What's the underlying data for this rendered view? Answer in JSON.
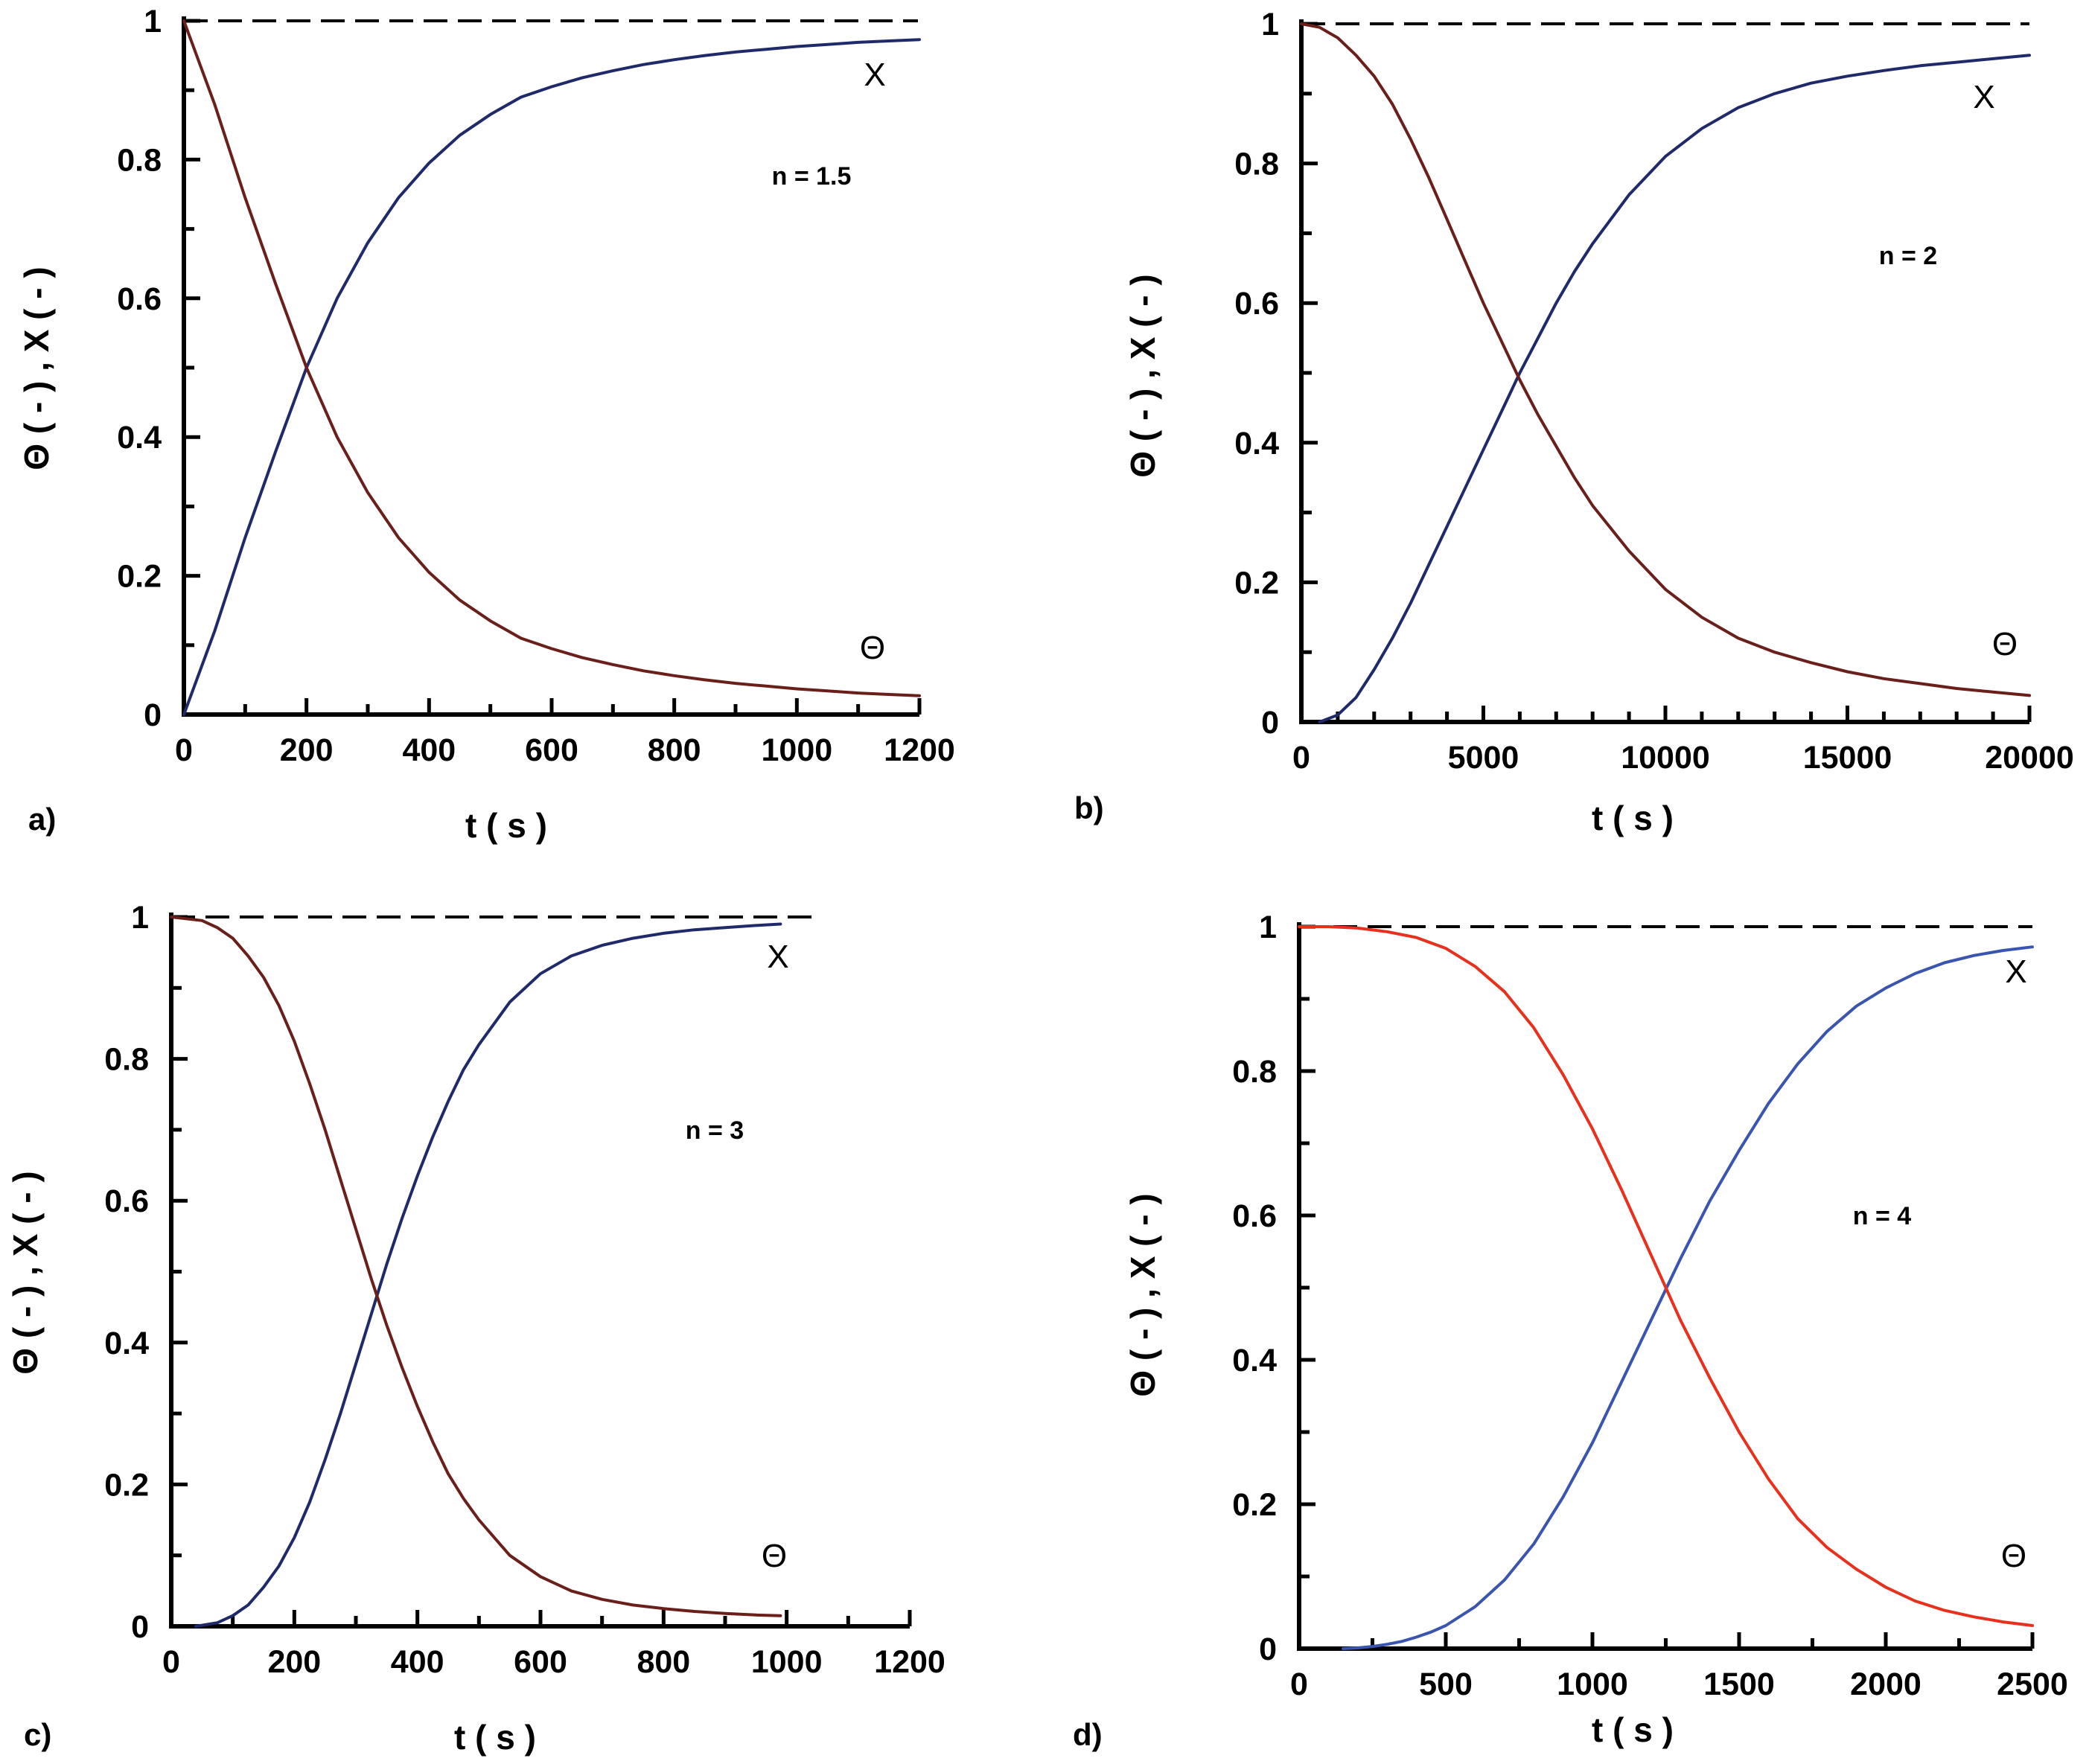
{
  "colors": {
    "theta_dark": "#6b1f1a",
    "x_dark": "#1f2a6b",
    "theta_red": "#e8301c",
    "x_blue": "#3a55b0",
    "axis": "#000000"
  },
  "chart_data": [
    {
      "id": "a",
      "panel_label": "a)",
      "type": "line",
      "xlabel": "t ( s )",
      "ylabel": "Θ ( - ) , X ( - )",
      "xlim": [
        0,
        1200
      ],
      "ylim": [
        0,
        1
      ],
      "xticks": [
        "0",
        "200",
        "400",
        "600",
        "800",
        "1000",
        "1200"
      ],
      "yticks": [
        "0",
        "0.2",
        "0.4",
        "0.6",
        "0.8",
        "1"
      ],
      "annotation": "n = 1.5",
      "reference_line": 1,
      "labels": {
        "x_curve": "X",
        "theta_curve": "Θ"
      },
      "series": [
        {
          "name": "X",
          "color_key": "x_dark",
          "x": [
            0,
            50,
            100,
            150,
            200,
            250,
            300,
            350,
            400,
            450,
            500,
            550,
            600,
            650,
            700,
            750,
            800,
            850,
            900,
            950,
            1000,
            1050,
            1100,
            1150,
            1200
          ],
          "y": [
            0,
            0.12,
            0.255,
            0.38,
            0.5,
            0.6,
            0.68,
            0.745,
            0.795,
            0.835,
            0.865,
            0.89,
            0.905,
            0.918,
            0.928,
            0.937,
            0.944,
            0.95,
            0.955,
            0.959,
            0.963,
            0.966,
            0.969,
            0.971,
            0.973
          ]
        },
        {
          "name": "Θ",
          "color_key": "theta_dark",
          "x": [
            0,
            50,
            100,
            150,
            200,
            250,
            300,
            350,
            400,
            450,
            500,
            550,
            600,
            650,
            700,
            750,
            800,
            850,
            900,
            950,
            1000,
            1050,
            1100,
            1150,
            1200
          ],
          "y": [
            1,
            0.88,
            0.745,
            0.62,
            0.5,
            0.4,
            0.32,
            0.255,
            0.205,
            0.165,
            0.135,
            0.11,
            0.095,
            0.082,
            0.072,
            0.063,
            0.056,
            0.05,
            0.045,
            0.041,
            0.037,
            0.034,
            0.031,
            0.029,
            0.027
          ]
        }
      ]
    },
    {
      "id": "b",
      "panel_label": "b)",
      "type": "line",
      "xlabel": "t ( s )",
      "ylabel": "Θ ( - ) , X ( - )",
      "xlim": [
        0,
        20000
      ],
      "ylim": [
        0,
        1
      ],
      "xticks": [
        "0",
        "5000",
        "10000",
        "15000",
        "20000"
      ],
      "yticks": [
        "0",
        "0.2",
        "0.4",
        "0.6",
        "0.8",
        "1"
      ],
      "annotation": "n = 2",
      "reference_line": 1,
      "labels": {
        "x_curve": "X",
        "theta_curve": "Θ"
      },
      "series": [
        {
          "name": "X",
          "color_key": "x_dark",
          "x": [
            500,
            1000,
            1500,
            2000,
            2500,
            3000,
            3500,
            4000,
            4500,
            5000,
            5500,
            6000,
            6500,
            7000,
            7500,
            8000,
            9000,
            10000,
            11000,
            12000,
            13000,
            14000,
            15000,
            16000,
            17000,
            18000,
            19000,
            20000
          ],
          "y": [
            0,
            0.01,
            0.035,
            0.075,
            0.12,
            0.17,
            0.225,
            0.28,
            0.335,
            0.39,
            0.445,
            0.5,
            0.55,
            0.6,
            0.645,
            0.685,
            0.755,
            0.81,
            0.85,
            0.88,
            0.9,
            0.915,
            0.925,
            0.933,
            0.94,
            0.945,
            0.95,
            0.955
          ]
        },
        {
          "name": "Θ",
          "color_key": "theta_dark",
          "x": [
            0,
            500,
            1000,
            1500,
            2000,
            2500,
            3000,
            3500,
            4000,
            4500,
            5000,
            5500,
            6000,
            6500,
            7000,
            7500,
            8000,
            9000,
            10000,
            11000,
            12000,
            13000,
            14000,
            15000,
            16000,
            17000,
            18000,
            19000,
            20000
          ],
          "y": [
            1,
            0.995,
            0.98,
            0.955,
            0.925,
            0.885,
            0.835,
            0.78,
            0.72,
            0.66,
            0.6,
            0.545,
            0.49,
            0.44,
            0.395,
            0.35,
            0.31,
            0.245,
            0.19,
            0.15,
            0.12,
            0.1,
            0.085,
            0.072,
            0.062,
            0.055,
            0.048,
            0.043,
            0.038
          ]
        }
      ]
    },
    {
      "id": "c",
      "panel_label": "c)",
      "type": "line",
      "xlabel": "t ( s )",
      "ylabel": "Θ ( - ) , X ( - )",
      "xlim": [
        0,
        1200
      ],
      "ylim": [
        0,
        1
      ],
      "xticks": [
        "0",
        "200",
        "400",
        "600",
        "800",
        "1000",
        "1200"
      ],
      "yticks": [
        "0",
        "0.2",
        "0.4",
        "0.6",
        "0.8",
        "1"
      ],
      "annotation": "n = 3",
      "reference_line": 1,
      "labels": {
        "x_curve": "X",
        "theta_curve": "Θ"
      },
      "series": [
        {
          "name": "X",
          "color_key": "x_dark",
          "x": [
            40,
            75,
            100,
            125,
            150,
            175,
            200,
            225,
            250,
            275,
            300,
            325,
            350,
            375,
            400,
            425,
            450,
            475,
            500,
            550,
            600,
            650,
            700,
            750,
            800,
            850,
            900,
            950,
            990
          ],
          "y": [
            0,
            0.005,
            0.015,
            0.03,
            0.055,
            0.085,
            0.125,
            0.175,
            0.235,
            0.3,
            0.37,
            0.44,
            0.51,
            0.575,
            0.635,
            0.69,
            0.74,
            0.785,
            0.82,
            0.88,
            0.92,
            0.945,
            0.96,
            0.97,
            0.977,
            0.982,
            0.985,
            0.988,
            0.99
          ]
        },
        {
          "name": "Θ",
          "color_key": "theta_dark",
          "x": [
            0,
            50,
            75,
            100,
            125,
            150,
            175,
            200,
            225,
            250,
            275,
            300,
            325,
            350,
            375,
            400,
            425,
            450,
            475,
            500,
            550,
            600,
            650,
            700,
            750,
            800,
            850,
            900,
            950,
            990
          ],
          "y": [
            1,
            0.995,
            0.985,
            0.97,
            0.945,
            0.915,
            0.875,
            0.825,
            0.765,
            0.7,
            0.63,
            0.56,
            0.49,
            0.425,
            0.365,
            0.31,
            0.26,
            0.215,
            0.18,
            0.15,
            0.1,
            0.07,
            0.05,
            0.038,
            0.03,
            0.025,
            0.021,
            0.018,
            0.016,
            0.015
          ]
        }
      ]
    },
    {
      "id": "d",
      "panel_label": "d)",
      "type": "line",
      "xlabel": "t ( s )",
      "ylabel": "Θ ( - ) , X ( - )",
      "xlim": [
        0,
        2500
      ],
      "ylim": [
        0,
        1
      ],
      "xticks": [
        "0",
        "500",
        "1000",
        "1500",
        "2000",
        "2500"
      ],
      "yticks": [
        "0",
        "0.2",
        "0.4",
        "0.6",
        "0.8",
        "1"
      ],
      "annotation": "n = 4",
      "reference_line": 1,
      "labels": {
        "x_curve": "X",
        "theta_curve": "Θ"
      },
      "series": [
        {
          "name": "X",
          "color_key": "x_blue",
          "x": [
            150,
            200,
            250,
            300,
            350,
            400,
            450,
            500,
            600,
            700,
            800,
            900,
            1000,
            1100,
            1200,
            1300,
            1400,
            1500,
            1600,
            1700,
            1800,
            1900,
            2000,
            2100,
            2200,
            2300,
            2400,
            2500
          ],
          "y": [
            0,
            0.001,
            0.003,
            0.006,
            0.01,
            0.016,
            0.023,
            0.032,
            0.058,
            0.095,
            0.145,
            0.21,
            0.285,
            0.37,
            0.455,
            0.54,
            0.62,
            0.69,
            0.755,
            0.81,
            0.855,
            0.89,
            0.915,
            0.935,
            0.95,
            0.96,
            0.967,
            0.972
          ]
        },
        {
          "name": "Θ",
          "color_key": "theta_red",
          "x": [
            0,
            100,
            200,
            300,
            400,
            500,
            600,
            700,
            800,
            900,
            1000,
            1100,
            1200,
            1300,
            1400,
            1500,
            1600,
            1700,
            1800,
            1900,
            2000,
            2100,
            2200,
            2300,
            2400,
            2500
          ],
          "y": [
            1,
            1,
            0.998,
            0.993,
            0.985,
            0.97,
            0.945,
            0.91,
            0.86,
            0.795,
            0.72,
            0.635,
            0.545,
            0.455,
            0.375,
            0.3,
            0.235,
            0.18,
            0.14,
            0.11,
            0.085,
            0.066,
            0.053,
            0.044,
            0.037,
            0.032
          ]
        }
      ]
    }
  ]
}
